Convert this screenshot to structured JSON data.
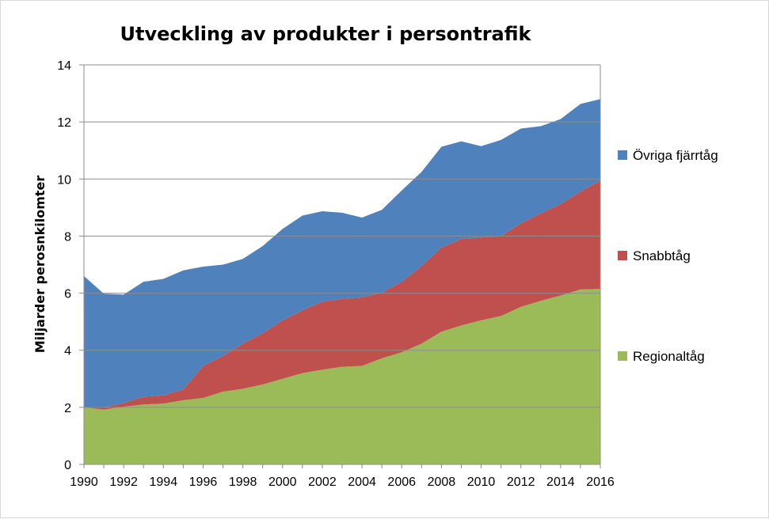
{
  "chart_data": {
    "type": "area",
    "stacked": true,
    "title": "Utveckling av produkter i persontrafik",
    "xlabel": "",
    "ylabel": "Miljarder perosnkilomter",
    "ylim": [
      0,
      14
    ],
    "yticks": [
      "0",
      "2",
      "4",
      "6",
      "8",
      "10",
      "12",
      "14"
    ],
    "xlim": [
      1990,
      2016
    ],
    "xticks": [
      "1990",
      "1992",
      "1994",
      "1996",
      "1998",
      "2000",
      "2002",
      "2004",
      "2006",
      "2008",
      "2010",
      "2012",
      "2014",
      "2016"
    ],
    "grid": true,
    "legend_position": "right",
    "x": [
      1990,
      1991,
      1992,
      1993,
      1994,
      1995,
      1996,
      1997,
      1998,
      1999,
      2000,
      2001,
      2002,
      2003,
      2004,
      2005,
      2006,
      2007,
      2008,
      2009,
      2010,
      2011,
      2012,
      2013,
      2014,
      2015,
      2016
    ],
    "series": [
      {
        "name": "Regionaltåg",
        "color": "#9bbb59",
        "values": [
          2.0,
          1.92,
          2.02,
          2.1,
          2.13,
          2.25,
          2.33,
          2.55,
          2.65,
          2.8,
          3.0,
          3.2,
          3.32,
          3.42,
          3.45,
          3.72,
          3.93,
          4.23,
          4.65,
          4.87,
          5.05,
          5.2,
          5.52,
          5.73,
          5.92,
          6.13,
          6.15
        ]
      },
      {
        "name": "Snabbtåg",
        "color": "#c0504d",
        "values": [
          0.0,
          0.08,
          0.13,
          0.27,
          0.29,
          0.38,
          1.12,
          1.25,
          1.58,
          1.8,
          2.05,
          2.2,
          2.38,
          2.38,
          2.4,
          2.3,
          2.47,
          2.72,
          2.95,
          3.03,
          2.9,
          2.8,
          2.93,
          3.07,
          3.2,
          3.43,
          3.8
        ]
      },
      {
        "name": "Övriga fjärrtåg",
        "color": "#4f81bd",
        "values": [
          4.6,
          3.98,
          3.8,
          4.03,
          4.08,
          4.17,
          3.48,
          3.2,
          2.97,
          3.05,
          3.2,
          3.32,
          3.17,
          3.02,
          2.8,
          2.9,
          3.2,
          3.3,
          3.53,
          3.42,
          3.2,
          3.37,
          3.32,
          3.05,
          2.98,
          3.07,
          2.85
        ]
      }
    ]
  }
}
